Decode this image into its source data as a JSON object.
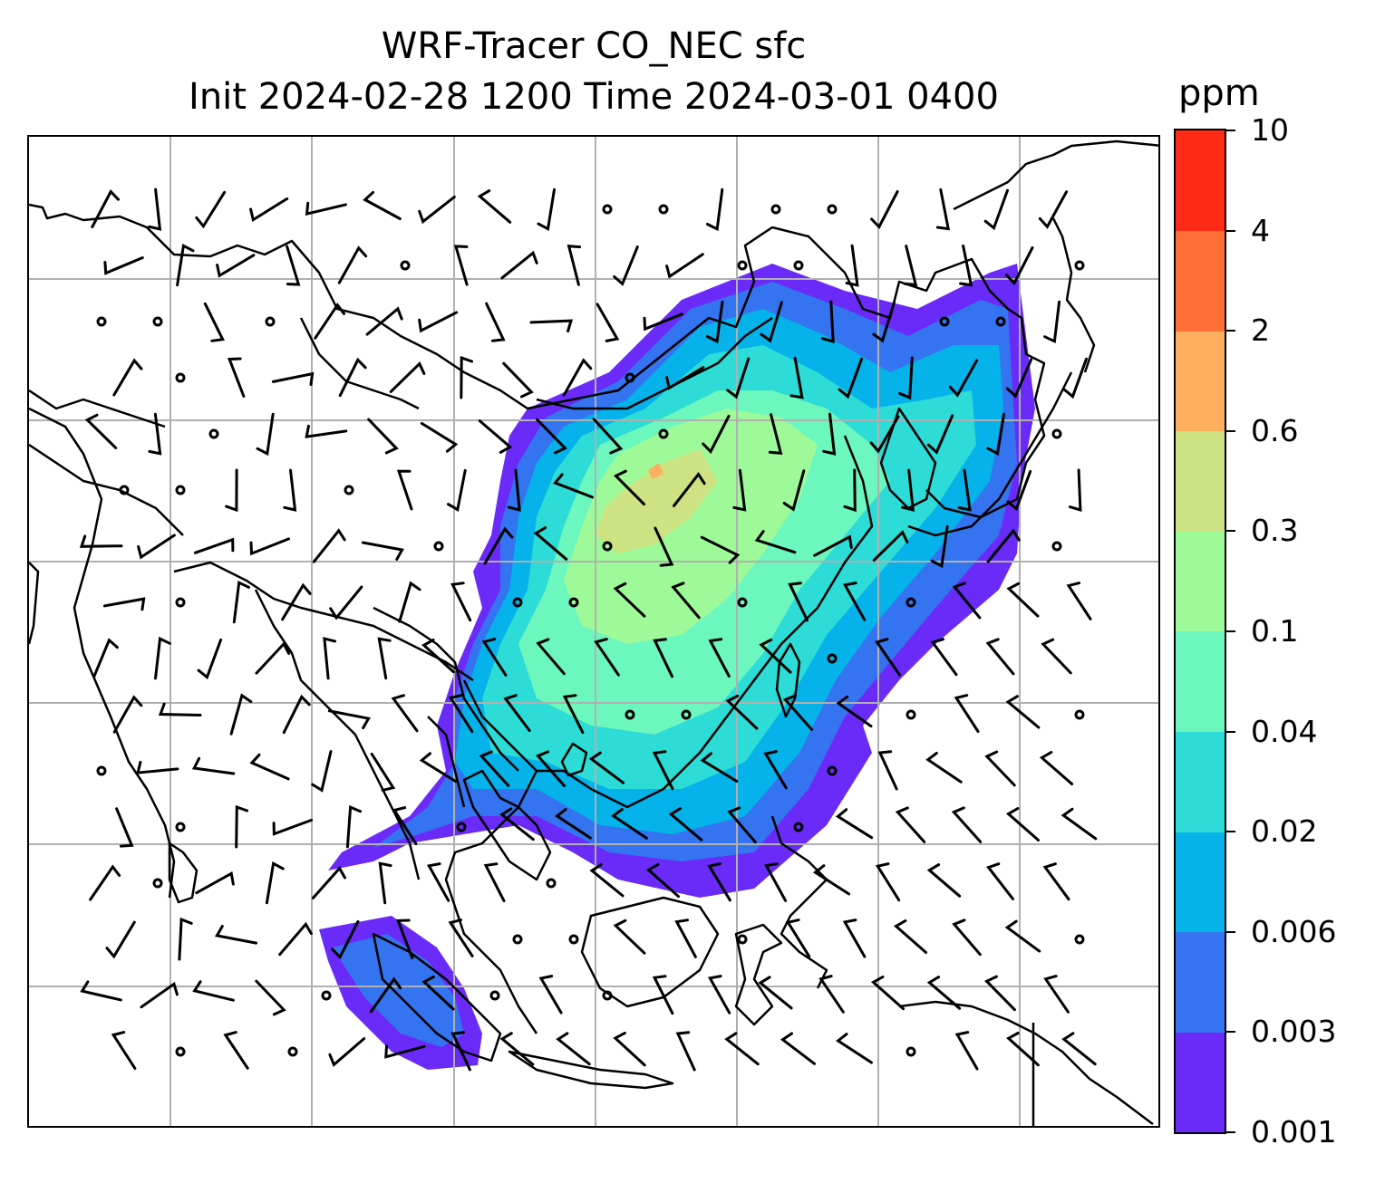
{
  "title": {
    "line1": "WRF-Tracer CO_NEC sfc",
    "line2": "Init 2024-02-28 1200 Time 2024-03-01 0400"
  },
  "colorbar": {
    "unit": "ppm",
    "levels": [
      "0.001",
      "0.003",
      "0.006",
      "0.02",
      "0.04",
      "0.1",
      "0.3",
      "0.6",
      "2",
      "4",
      "10"
    ],
    "colors": [
      "#6a2bf8",
      "#3474f0",
      "#05b2ea",
      "#2ddcd6",
      "#6cf7be",
      "#9efa98",
      "#cde282",
      "#fdaf5e",
      "#ff7038",
      "#ff2a16"
    ]
  },
  "map": {
    "gridline_color": "#b0b0b0",
    "coastline_color": "#000000",
    "wind_barb_color": "#000000",
    "field": "CO_NEC surface concentration"
  }
}
